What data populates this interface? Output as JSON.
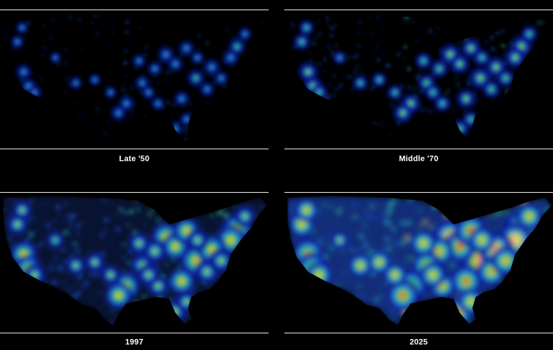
{
  "panels": [
    {
      "id": "p1950",
      "caption": "Late '50",
      "intensity": 0.18,
      "spread": 0.45
    },
    {
      "id": "p1970",
      "caption": "Middle '70",
      "intensity": 0.38,
      "spread": 0.65
    },
    {
      "id": "p1997",
      "caption": "1997",
      "intensity": 0.68,
      "spread": 1.0
    },
    {
      "id": "p2025",
      "caption": "2025",
      "intensity": 1.0,
      "spread": 1.25
    }
  ],
  "palette": [
    "#0a1a8c",
    "#1d54d8",
    "#2fb7b0",
    "#3ec33a",
    "#e8e81e",
    "#f19a12",
    "#e62a12",
    "#ffffff"
  ]
}
